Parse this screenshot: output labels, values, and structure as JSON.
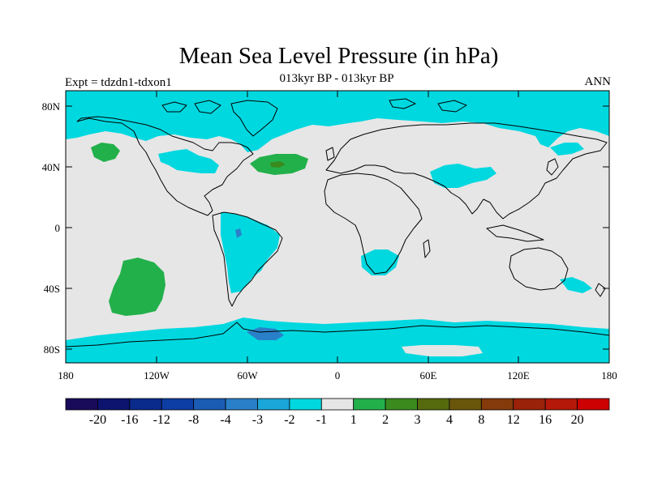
{
  "header": {
    "title": "Mean Sea Level Pressure (in hPa)",
    "subtitle": "013kyr BP - 013kyr BP",
    "left": "Expt = tdzdn1-tdxon1",
    "right": "ANN"
  },
  "axes": {
    "lat_ticks": [
      "80N",
      "40N",
      "0",
      "40S",
      "80S"
    ],
    "lon_ticks": [
      "180",
      "120W",
      "60W",
      "0",
      "60E",
      "120E",
      "180"
    ]
  },
  "legend": {
    "colors": [
      "#1a0a5a",
      "#0c1470",
      "#0a2a8c",
      "#0c3ea4",
      "#1a5cb4",
      "#2a80c8",
      "#1aa6d8",
      "#00d8e0",
      "#e6e6e6",
      "#22b04a",
      "#3a8a1e",
      "#556a0c",
      "#6a560a",
      "#843a0a",
      "#9a2208",
      "#b41808",
      "#cc0000"
    ],
    "labels": [
      "-20",
      "-16",
      "-12",
      "-8",
      "-4",
      "-3",
      "-2",
      "-1",
      "1",
      "2",
      "3",
      "4",
      "8",
      "12",
      "16",
      "20"
    ]
  },
  "fill_colors": {
    "neutral": "#e6e6e6",
    "cyan": "#00d8e0",
    "blue": "#2a80c8",
    "green": "#22b04a",
    "dark_green": "#3a8a1e"
  }
}
